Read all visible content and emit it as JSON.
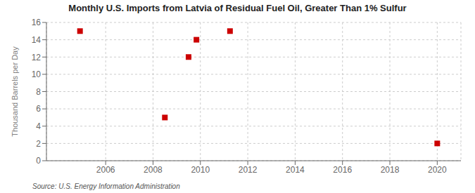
{
  "chart_data": {
    "type": "scatter",
    "title": "Monthly U.S. Imports from Latvia of Residual Fuel Oil, Greater Than 1% Sulfur",
    "ylabel": "Thousand Barrels per Day",
    "source": "Source: U.S. Energy Information Administration",
    "x": [
      2004.917,
      2008.5,
      2009.5,
      2009.833,
      2011.25,
      2020.0
    ],
    "values": [
      15,
      5,
      12,
      14,
      15,
      2
    ],
    "color": "#cc0000",
    "marker": "square",
    "xlim": [
      2003.5,
      2021
    ],
    "ylim": [
      0,
      16
    ],
    "xticks": [
      2006,
      2008,
      2010,
      2012,
      2014,
      2016,
      2018,
      2020
    ],
    "yticks": [
      0,
      2,
      4,
      6,
      8,
      10,
      12,
      14,
      16
    ],
    "grid": true
  }
}
